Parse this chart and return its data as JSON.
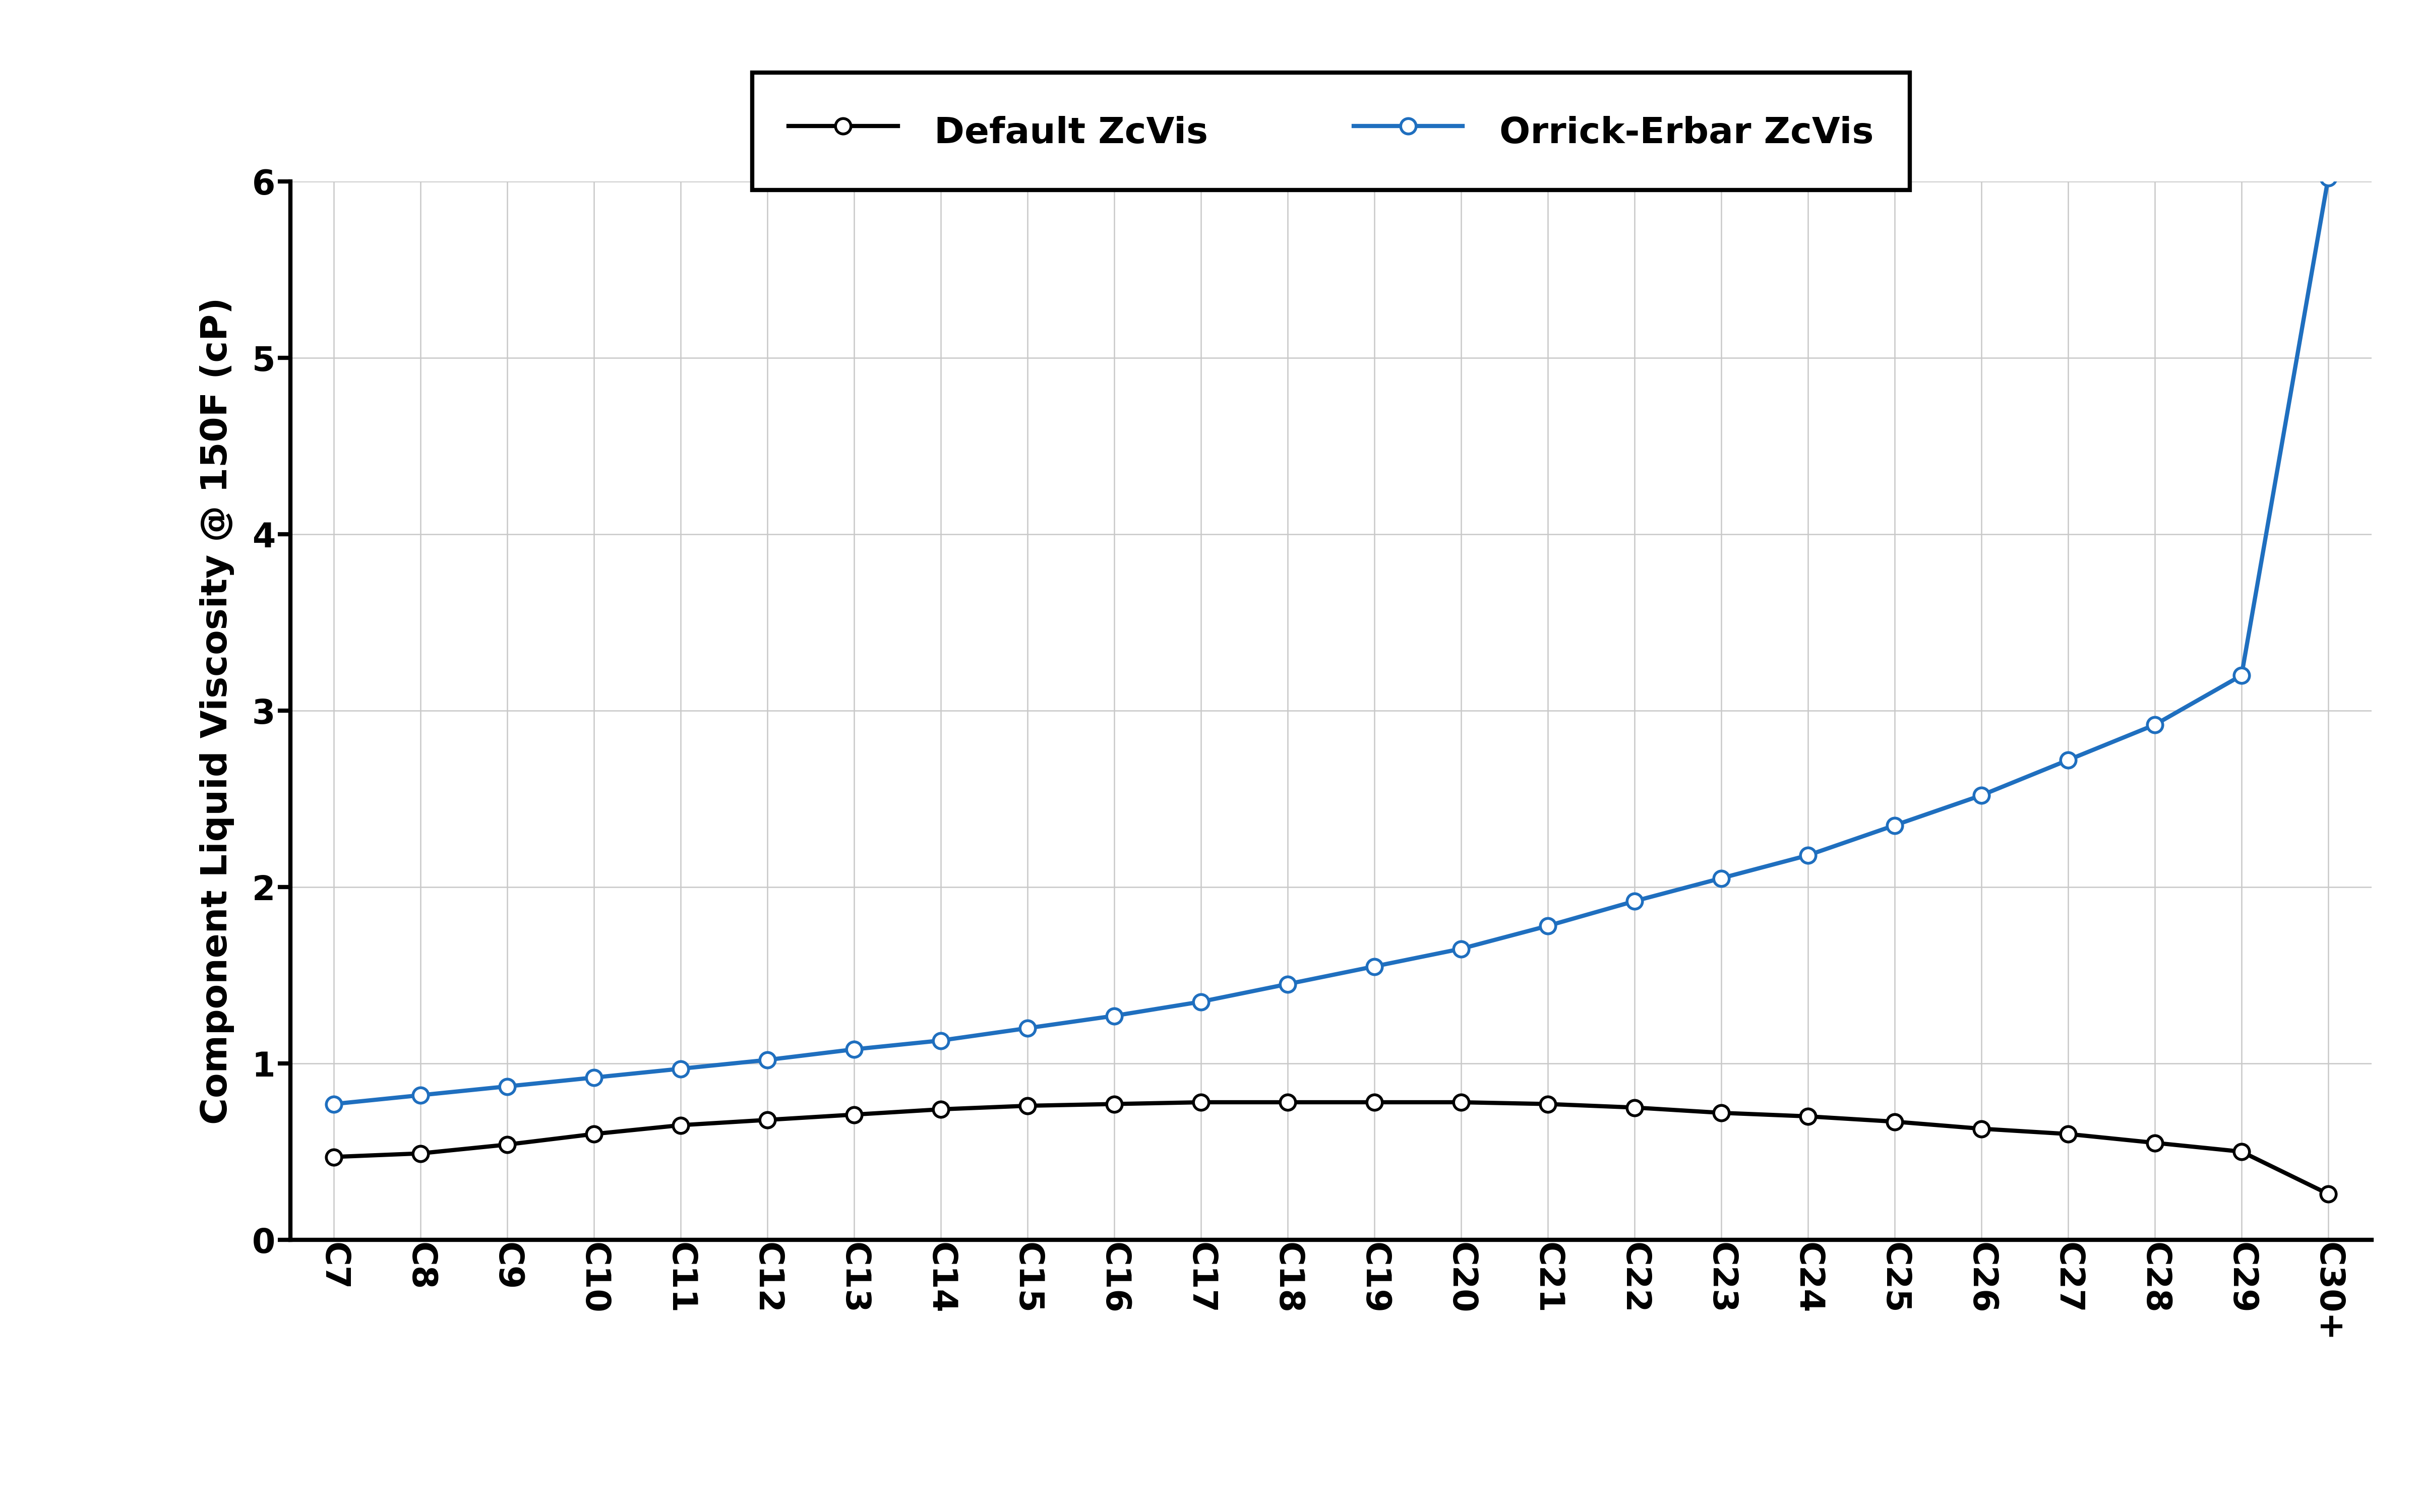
{
  "categories": [
    "C7",
    "C8",
    "C9",
    "C10",
    "C11",
    "C12",
    "C13",
    "C14",
    "C15",
    "C16",
    "C17",
    "C18",
    "C19",
    "C20",
    "C21",
    "C22",
    "C23",
    "C24",
    "C25",
    "C26",
    "C27",
    "C28",
    "C29",
    "C30+"
  ],
  "default_zcvis": [
    0.47,
    0.49,
    0.54,
    0.6,
    0.65,
    0.68,
    0.71,
    0.74,
    0.76,
    0.77,
    0.78,
    0.78,
    0.78,
    0.78,
    0.77,
    0.75,
    0.72,
    0.7,
    0.67,
    0.63,
    0.6,
    0.55,
    0.5,
    0.26
  ],
  "orrick_erbar_zcvis": [
    0.77,
    0.82,
    0.87,
    0.92,
    0.97,
    1.02,
    1.08,
    1.13,
    1.2,
    1.27,
    1.35,
    1.45,
    1.55,
    1.65,
    1.78,
    1.92,
    2.05,
    2.18,
    2.35,
    2.52,
    2.72,
    2.92,
    3.2,
    6.02
  ],
  "black_color": "#000000",
  "blue_color": "#1F6FBF",
  "ylabel": "Component Liquid Viscosity @ 150F (cP)",
  "ylim": [
    0,
    6
  ],
  "yticks": [
    0,
    1,
    2,
    3,
    4,
    5,
    6
  ],
  "legend_label_black": "Default ZcVis",
  "legend_label_blue": "Orrick-Erbar ZcVis",
  "grid_color": "#C8C8C8",
  "background_color": "#FFFFFF",
  "marker_size": 22,
  "marker_edge_width": 4,
  "linewidth": 6,
  "legend_fontsize": 52,
  "axis_label_fontsize": 52,
  "tick_fontsize": 48,
  "spine_linewidth": 6
}
